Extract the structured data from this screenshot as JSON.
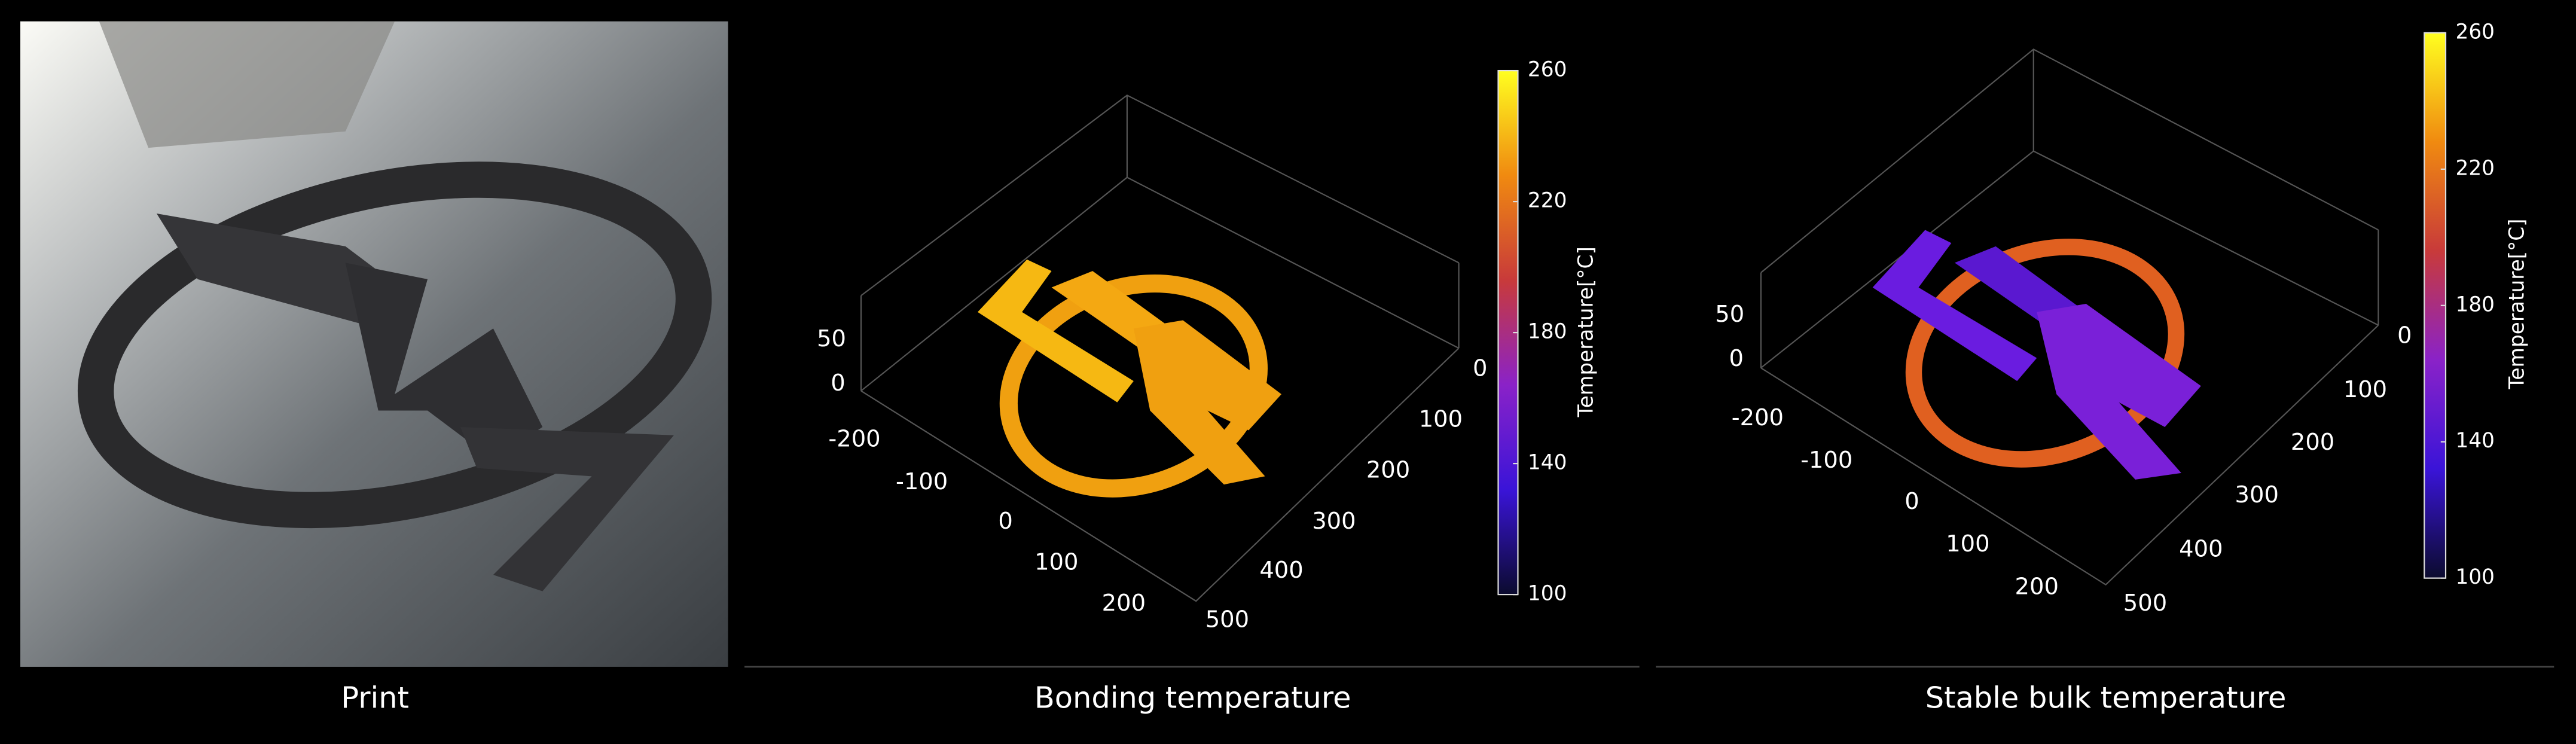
{
  "panels": [
    {
      "caption": "Print"
    },
    {
      "caption": "Bonding temperature",
      "colorbar": {
        "label": "Temperature[°C]",
        "ticks": [
          100,
          140,
          180,
          220,
          260
        ]
      },
      "z_ticks": [
        0,
        50
      ],
      "x_ticks": [
        -200,
        -100,
        0,
        100,
        200
      ],
      "y_ticks": [
        0,
        100,
        200,
        300,
        400,
        500
      ]
    },
    {
      "caption": "Stable bulk temperature",
      "colorbar": {
        "label": "Temperature[°C]",
        "ticks": [
          100,
          140,
          180,
          220,
          260
        ]
      },
      "z_ticks": [
        0,
        50
      ],
      "x_ticks": [
        -200,
        -100,
        0,
        100,
        200
      ],
      "y_ticks": [
        0,
        100,
        200,
        300,
        400,
        500
      ]
    }
  ]
}
